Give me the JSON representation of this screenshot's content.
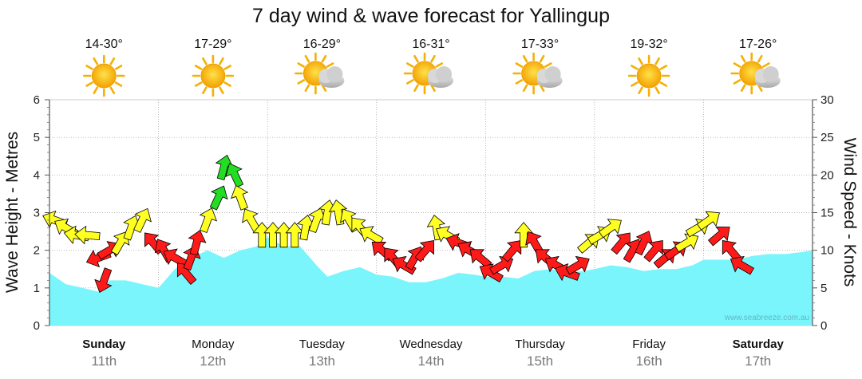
{
  "chart_data": {
    "type": "area+wind-arrows",
    "title": "7 day wind & wave forecast for Yallingup",
    "ylabel_left": "Wave Height - Metres",
    "ylabel_right": "Wind Speed - Knots",
    "y_left_range": [
      0,
      6
    ],
    "y_right_range": [
      0,
      30
    ],
    "y_left_ticks": [
      "0",
      "1",
      "2",
      "3",
      "4",
      "5",
      "6"
    ],
    "y_right_ticks": [
      "0",
      "5",
      "10",
      "15",
      "20",
      "25",
      "30"
    ],
    "watermark": "www.seabreeze.com.au",
    "days": [
      {
        "name": "Sunday",
        "date": "11th",
        "temp": "14-30°",
        "weather": "sunny",
        "bold": true
      },
      {
        "name": "Monday",
        "date": "12th",
        "temp": "17-29°",
        "weather": "sunny",
        "bold": false
      },
      {
        "name": "Tuesday",
        "date": "13th",
        "temp": "16-29°",
        "weather": "partly-cloudy",
        "bold": false
      },
      {
        "name": "Wednesday",
        "date": "14th",
        "temp": "16-31°",
        "weather": "partly-cloudy",
        "bold": false
      },
      {
        "name": "Thursday",
        "date": "15th",
        "temp": "17-33°",
        "weather": "partly-cloudy",
        "bold": false
      },
      {
        "name": "Friday",
        "date": "16th",
        "temp": "19-32°",
        "weather": "sunny",
        "bold": false
      },
      {
        "name": "Saturday",
        "date": "17th",
        "temp": "17-26°",
        "weather": "partly-cloudy",
        "bold": true
      }
    ],
    "wave_series": {
      "name": "Wave height (m)",
      "x_days": [
        0,
        0.15,
        0.3,
        0.45,
        0.55,
        0.7,
        0.85,
        1.0,
        1.15,
        1.3,
        1.45,
        1.6,
        1.75,
        1.9,
        2.0,
        2.15,
        2.3,
        2.45,
        2.55,
        2.7,
        2.85,
        3.0,
        3.15,
        3.3,
        3.45,
        3.6,
        3.75,
        3.9,
        4.0,
        4.15,
        4.3,
        4.45,
        4.6,
        4.75,
        4.9,
        5.0,
        5.15,
        5.3,
        5.45,
        5.6,
        5.75,
        5.9,
        6.0,
        6.15,
        6.3,
        6.45,
        6.6,
        6.75,
        6.9,
        7.0
      ],
      "values": [
        1.4,
        1.1,
        1.0,
        0.9,
        1.2,
        1.2,
        1.1,
        1.0,
        1.5,
        1.8,
        2.0,
        1.8,
        2.0,
        2.1,
        2.35,
        2.1,
        2.1,
        1.6,
        1.3,
        1.45,
        1.55,
        1.35,
        1.3,
        1.15,
        1.15,
        1.25,
        1.4,
        1.35,
        1.3,
        1.3,
        1.25,
        1.45,
        1.5,
        1.4,
        1.45,
        1.5,
        1.6,
        1.55,
        1.45,
        1.5,
        1.5,
        1.6,
        1.75,
        1.75,
        1.75,
        1.85,
        1.9,
        1.9,
        1.95,
        2.0
      ]
    },
    "wind_series": {
      "name": "Wind speed (knots), arrow direction in compass degrees toward which arrow points, colour = strength category",
      "points": [
        {
          "x": 0.05,
          "speed": 14,
          "dir": 290,
          "level": "moderate"
        },
        {
          "x": 0.15,
          "speed": 13,
          "dir": 300,
          "level": "moderate"
        },
        {
          "x": 0.25,
          "speed": 12,
          "dir": 280,
          "level": "moderate"
        },
        {
          "x": 0.35,
          "speed": 12,
          "dir": 275,
          "level": "moderate"
        },
        {
          "x": 0.45,
          "speed": 9,
          "dir": 250,
          "level": "strong"
        },
        {
          "x": 0.5,
          "speed": 6,
          "dir": 200,
          "level": "strong"
        },
        {
          "x": 0.55,
          "speed": 10,
          "dir": 60,
          "level": "strong"
        },
        {
          "x": 0.65,
          "speed": 11,
          "dir": 30,
          "level": "moderate"
        },
        {
          "x": 0.75,
          "speed": 13,
          "dir": 20,
          "level": "moderate"
        },
        {
          "x": 0.85,
          "speed": 14,
          "dir": 25,
          "level": "moderate"
        },
        {
          "x": 0.95,
          "speed": 11,
          "dir": 320,
          "level": "strong"
        },
        {
          "x": 1.05,
          "speed": 10,
          "dir": 330,
          "level": "strong"
        },
        {
          "x": 1.15,
          "speed": 9,
          "dir": 300,
          "level": "strong"
        },
        {
          "x": 1.25,
          "speed": 7,
          "dir": 320,
          "level": "strong"
        },
        {
          "x": 1.3,
          "speed": 9,
          "dir": 20,
          "level": "strong"
        },
        {
          "x": 1.35,
          "speed": 11,
          "dir": 15,
          "level": "strong"
        },
        {
          "x": 1.45,
          "speed": 14,
          "dir": 20,
          "level": "moderate"
        },
        {
          "x": 1.55,
          "speed": 17,
          "dir": 25,
          "level": "light"
        },
        {
          "x": 1.6,
          "speed": 21,
          "dir": 15,
          "level": "light"
        },
        {
          "x": 1.7,
          "speed": 20,
          "dir": 335,
          "level": "light"
        },
        {
          "x": 1.75,
          "speed": 17,
          "dir": 340,
          "level": "moderate"
        },
        {
          "x": 1.85,
          "speed": 14,
          "dir": 330,
          "level": "moderate"
        },
        {
          "x": 1.95,
          "speed": 12,
          "dir": 0,
          "level": "moderate"
        },
        {
          "x": 2.05,
          "speed": 12,
          "dir": 0,
          "level": "moderate"
        },
        {
          "x": 2.15,
          "speed": 12,
          "dir": 0,
          "level": "moderate"
        },
        {
          "x": 2.25,
          "speed": 12,
          "dir": 0,
          "level": "moderate"
        },
        {
          "x": 2.35,
          "speed": 13,
          "dir": 10,
          "level": "moderate"
        },
        {
          "x": 2.45,
          "speed": 14,
          "dir": 20,
          "level": "moderate"
        },
        {
          "x": 2.55,
          "speed": 15,
          "dir": 10,
          "level": "moderate"
        },
        {
          "x": 2.65,
          "speed": 15,
          "dir": 350,
          "level": "moderate"
        },
        {
          "x": 2.75,
          "speed": 14,
          "dir": 330,
          "level": "moderate"
        },
        {
          "x": 2.85,
          "speed": 13,
          "dir": 320,
          "level": "moderate"
        },
        {
          "x": 2.95,
          "speed": 12,
          "dir": 300,
          "level": "moderate"
        },
        {
          "x": 3.05,
          "speed": 10,
          "dir": 310,
          "level": "strong"
        },
        {
          "x": 3.15,
          "speed": 9,
          "dir": 320,
          "level": "strong"
        },
        {
          "x": 3.25,
          "speed": 8,
          "dir": 300,
          "level": "strong"
        },
        {
          "x": 3.35,
          "speed": 9,
          "dir": 30,
          "level": "strong"
        },
        {
          "x": 3.45,
          "speed": 10,
          "dir": 40,
          "level": "strong"
        },
        {
          "x": 3.55,
          "speed": 13,
          "dir": 350,
          "level": "moderate"
        },
        {
          "x": 3.65,
          "speed": 12,
          "dir": 300,
          "level": "moderate"
        },
        {
          "x": 3.75,
          "speed": 11,
          "dir": 290,
          "level": "strong"
        },
        {
          "x": 3.85,
          "speed": 10,
          "dir": 300,
          "level": "strong"
        },
        {
          "x": 3.95,
          "speed": 9,
          "dir": 310,
          "level": "strong"
        },
        {
          "x": 4.05,
          "speed": 7,
          "dir": 300,
          "level": "strong"
        },
        {
          "x": 4.15,
          "speed": 8,
          "dir": 60,
          "level": "strong"
        },
        {
          "x": 4.25,
          "speed": 10,
          "dir": 40,
          "level": "strong"
        },
        {
          "x": 4.35,
          "speed": 12,
          "dir": 0,
          "level": "moderate"
        },
        {
          "x": 4.45,
          "speed": 11,
          "dir": 330,
          "level": "strong"
        },
        {
          "x": 4.55,
          "speed": 9,
          "dir": 310,
          "level": "strong"
        },
        {
          "x": 4.65,
          "speed": 8,
          "dir": 300,
          "level": "strong"
        },
        {
          "x": 4.75,
          "speed": 7,
          "dir": 290,
          "level": "strong"
        },
        {
          "x": 4.85,
          "speed": 8,
          "dir": 60,
          "level": "strong"
        },
        {
          "x": 4.95,
          "speed": 11,
          "dir": 50,
          "level": "moderate"
        },
        {
          "x": 5.05,
          "speed": 12,
          "dir": 60,
          "level": "moderate"
        },
        {
          "x": 5.15,
          "speed": 13,
          "dir": 55,
          "level": "moderate"
        },
        {
          "x": 5.25,
          "speed": 11,
          "dir": 40,
          "level": "strong"
        },
        {
          "x": 5.35,
          "speed": 10,
          "dir": 30,
          "level": "strong"
        },
        {
          "x": 5.45,
          "speed": 11,
          "dir": 25,
          "level": "strong"
        },
        {
          "x": 5.55,
          "speed": 10,
          "dir": 40,
          "level": "strong"
        },
        {
          "x": 5.65,
          "speed": 9,
          "dir": 50,
          "level": "strong"
        },
        {
          "x": 5.75,
          "speed": 10,
          "dir": 55,
          "level": "strong"
        },
        {
          "x": 5.85,
          "speed": 11,
          "dir": 60,
          "level": "moderate"
        },
        {
          "x": 5.95,
          "speed": 13,
          "dir": 60,
          "level": "moderate"
        },
        {
          "x": 6.05,
          "speed": 14,
          "dir": 55,
          "level": "moderate"
        },
        {
          "x": 6.15,
          "speed": 12,
          "dir": 50,
          "level": "strong"
        },
        {
          "x": 6.25,
          "speed": 10,
          "dir": 320,
          "level": "strong"
        },
        {
          "x": 6.35,
          "speed": 8,
          "dir": 300,
          "level": "strong"
        }
      ]
    }
  }
}
